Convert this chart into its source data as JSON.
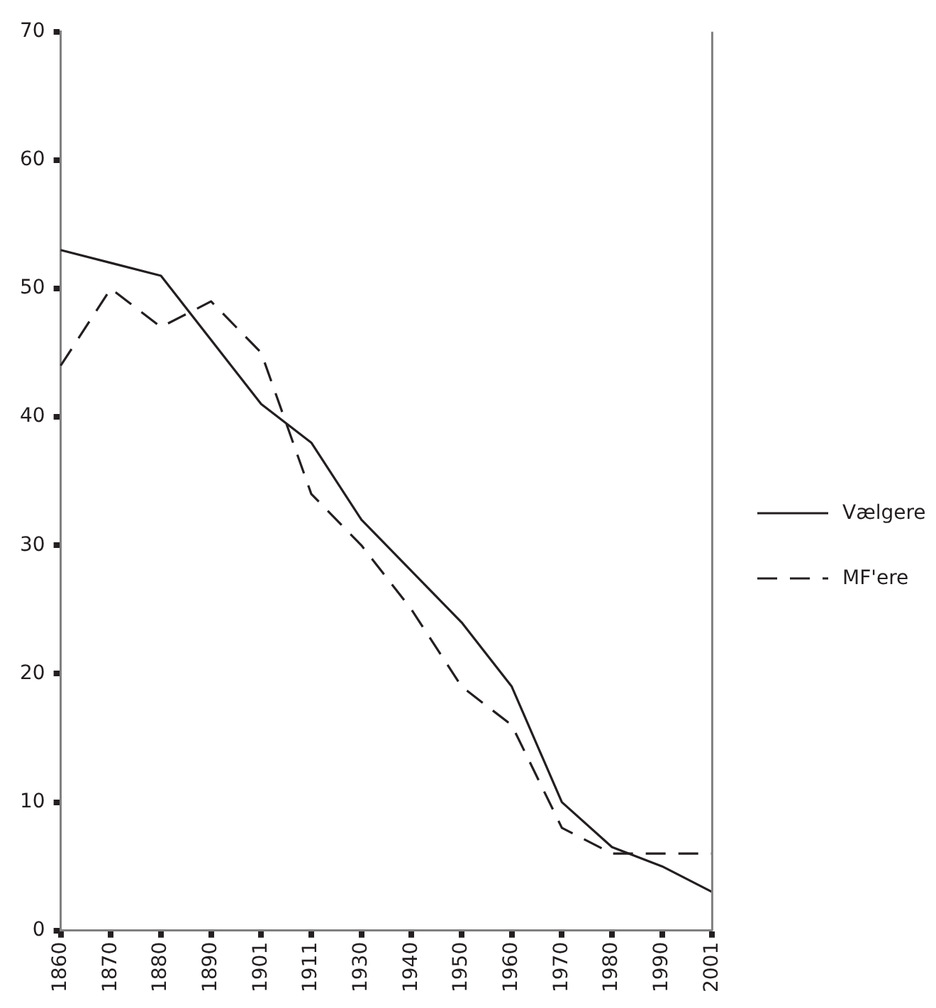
{
  "chart_data": {
    "type": "line",
    "categories": [
      "1860",
      "1870",
      "1880",
      "1890",
      "1901",
      "1911",
      "1930",
      "1940",
      "1950",
      "1960",
      "1970",
      "1980",
      "1990",
      "2001"
    ],
    "series": [
      {
        "name": "Vælgere",
        "color": "#231f20",
        "line_style": "solid",
        "values": [
          53,
          52,
          51,
          46,
          41,
          38,
          32,
          28,
          24,
          19,
          10,
          6.5,
          5,
          3
        ]
      },
      {
        "name": "MF'ere",
        "color": "#231f20",
        "line_style": "dashed",
        "values": [
          44,
          50,
          47,
          49,
          45,
          34,
          30,
          25,
          19,
          16,
          8,
          6,
          6,
          6
        ]
      }
    ],
    "ylim": [
      0,
      70
    ],
    "yticks": [
      0,
      10,
      20,
      30,
      40,
      50,
      60,
      70
    ],
    "grid": false,
    "legend": "right",
    "marker": "none"
  }
}
